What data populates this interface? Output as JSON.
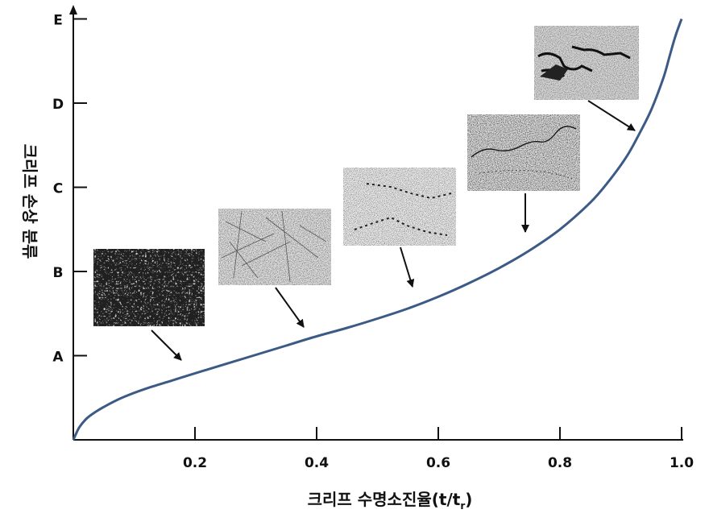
{
  "chart_data": {
    "type": "line",
    "xlabel": "크리프 수명소진율(t/t",
    "xlabel_sub": "r",
    "xlabel_close": ")",
    "ylabel": "크리프 손상 분류",
    "xlim": [
      0,
      1.0
    ],
    "x_ticks": [
      {
        "value": 0.2,
        "label": "0.2"
      },
      {
        "value": 0.4,
        "label": "0.4"
      },
      {
        "value": 0.6,
        "label": "0.6"
      },
      {
        "value": 0.8,
        "label": "0.8"
      },
      {
        "value": 1.0,
        "label": "1.0"
      }
    ],
    "y_ticks": [
      "A",
      "B",
      "C",
      "D",
      "E"
    ],
    "grid": false,
    "series": [
      {
        "x": [
          0,
          0.005,
          0.01,
          0.02,
          0.03,
          0.05,
          0.08,
          0.12,
          0.16,
          0.2,
          0.25,
          0.3,
          0.35,
          0.4,
          0.45,
          0.5,
          0.55,
          0.6,
          0.65,
          0.7,
          0.75,
          0.8,
          0.85,
          0.88,
          0.91,
          0.93,
          0.95,
          0.97,
          0.98,
          0.99,
          1.0
        ],
        "y": [
          0,
          0.08,
          0.15,
          0.24,
          0.3,
          0.39,
          0.5,
          0.61,
          0.7,
          0.79,
          0.9,
          1.01,
          1.12,
          1.23,
          1.33,
          1.44,
          1.56,
          1.7,
          1.86,
          2.04,
          2.25,
          2.5,
          2.82,
          3.07,
          3.37,
          3.63,
          3.92,
          4.3,
          4.55,
          4.8,
          5.0
        ],
        "color": "#3b5a85"
      }
    ],
    "micrographs": [
      {
        "name": "micrograph-a",
        "style": "dense-structure",
        "points_to": {
          "x": 0.18,
          "y": 0.9
        }
      },
      {
        "name": "micrograph-b",
        "style": "fine-lines",
        "points_to": {
          "x": 0.38,
          "y": 1.32
        }
      },
      {
        "name": "micrograph-c",
        "style": "void-chains",
        "points_to": {
          "x": 0.56,
          "y": 1.8
        }
      },
      {
        "name": "micrograph-d",
        "style": "microcrack",
        "points_to": {
          "x": 0.74,
          "y": 2.45
        }
      },
      {
        "name": "micrograph-e",
        "style": "macrocrack",
        "points_to": {
          "x": 0.92,
          "y": 3.67
        }
      }
    ]
  }
}
